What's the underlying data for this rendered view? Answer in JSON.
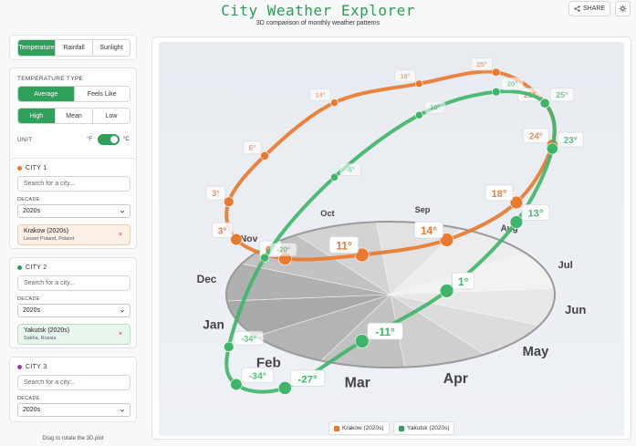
{
  "header": {
    "title": "City Weather Explorer",
    "subtitle": "3D comparison of monthly weather patterns",
    "share_label": "SHARE",
    "theme_icon": "sun-icon"
  },
  "metric_tabs": [
    {
      "label": "Temperature",
      "active": true
    },
    {
      "label": "Rainfall",
      "active": false
    },
    {
      "label": "Sunlight",
      "active": false
    }
  ],
  "temperature_type": {
    "heading": "TEMPERATURE TYPE",
    "modes": [
      {
        "label": "Average",
        "active": true
      },
      {
        "label": "Feels Like",
        "active": false
      }
    ],
    "levels": [
      {
        "label": "High",
        "active": true
      },
      {
        "label": "Mean",
        "active": false
      },
      {
        "label": "Low",
        "active": false
      }
    ],
    "unit_label": "UNIT",
    "unit_off": "°F",
    "unit_on": "°C"
  },
  "cities": [
    {
      "heading": "CITY 1",
      "color": "#e8792e",
      "placeholder": "Search for a city...",
      "decade_label": "DECADE",
      "decade": "2020s",
      "selected": {
        "name": "Krakow (2020s)",
        "region": "Lesser Poland, Poland",
        "bg": "#fdf0e6",
        "border": "#f3c9a8"
      }
    },
    {
      "heading": "CITY 2",
      "color": "#2ea05a",
      "placeholder": "Search for a city...",
      "decade_label": "DECADE",
      "decade": "2020s",
      "selected": {
        "name": "Yakutsk (2020s)",
        "region": "Sakha, Russia",
        "bg": "#e9f6ee",
        "border": "#b7dfc4"
      }
    },
    {
      "heading": "CITY 3",
      "color": "#8e44ad",
      "placeholder": "Search for a city...",
      "decade_label": "DECADE",
      "decade": "2020s",
      "selected": null
    }
  ],
  "hint": "Drag to rotate the 3D plot",
  "remove_symbol": "×",
  "chart_data": {
    "type": "line",
    "chart_style": "3D radial (months around a disc, temperature as height)",
    "categories": [
      "Jan",
      "Feb",
      "Mar",
      "Apr",
      "May",
      "Jun",
      "Jul",
      "Aug",
      "Sep",
      "Oct",
      "Nov",
      "Dec"
    ],
    "series": [
      {
        "name": "Krakow (2020s)",
        "color": "#e8792e",
        "values": [
          3,
          6,
          11,
          14,
          18,
          24,
          25,
          25,
          18,
          14,
          6,
          3
        ]
      },
      {
        "name": "Yakutsk (2020s)",
        "color": "#3fb56a",
        "values": [
          -34,
          -27,
          -11,
          1,
          13,
          23,
          25,
          20,
          10,
          -5,
          -20,
          -34
        ]
      }
    ],
    "value_labels": [
      "3°",
      "6°",
      "11°",
      "14°",
      "18°",
      "24°",
      "25°",
      "23°",
      "13°",
      "1°",
      "-11°",
      "-27°",
      "-34°"
    ],
    "legend": [
      "Krakow (2020s)",
      "Yakutsk (2020s)"
    ],
    "legend_position": "bottom",
    "unit": "°C"
  }
}
